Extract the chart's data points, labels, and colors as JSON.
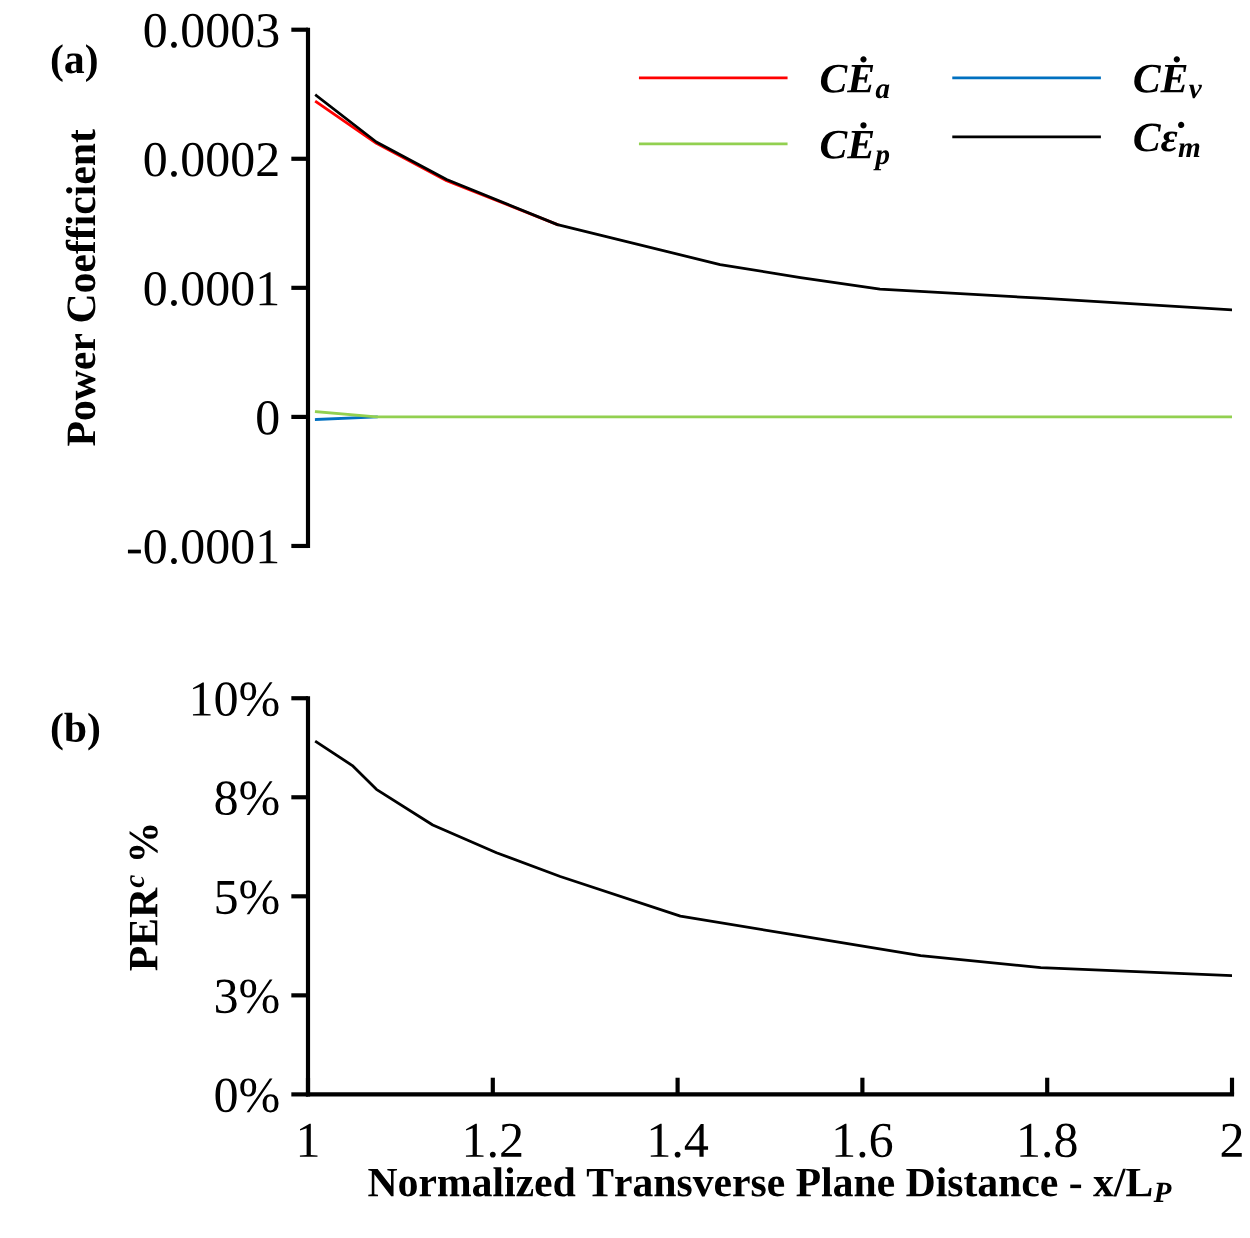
{
  "chart_data": [
    {
      "type": "line",
      "ylabel": "Power Coefficient",
      "annotations": [
        "(a)"
      ],
      "x": [
        1.009,
        1.074,
        1.15,
        1.27,
        1.446,
        1.533,
        1.619,
        1.793,
        2.0
      ],
      "xlim": [
        1,
        2
      ],
      "tick_labels": "y",
      "ylim": [
        -0.0001,
        0.0003
      ],
      "yticks": [
        {
          "value": -0.0001,
          "label": "-0.0001"
        },
        {
          "value": 0,
          "label": "0"
        },
        {
          "value": 0.0001,
          "label": "0.0001"
        },
        {
          "value": 0.0002,
          "label": "0.0002"
        },
        {
          "value": 0.0003,
          "label": "0.0003"
        }
      ],
      "grid": false,
      "legend": "top right",
      "series": [
        {
          "name": "CĖ$_{a}$",
          "color": "#ff0000",
          "values": [
            0.000244,
            0.000212,
            0.000183,
            0.000149,
            null,
            null,
            null,
            null,
            null
          ]
        },
        {
          "name": "CĖ$_{v}$",
          "color": "#0070c0",
          "values": [
            -2e-06,
            0,
            null,
            null,
            null,
            null,
            null,
            null,
            null
          ]
        },
        {
          "name": "CĖ$_{p}$",
          "color": "#92d050",
          "values": [
            4e-06,
            0,
            0,
            0,
            0,
            0,
            0,
            0,
            0
          ]
        },
        {
          "name": "Cε̇$_{m}$",
          "color": "#000000",
          "values": [
            0.000249,
            0.000213,
            0.000184,
            0.000149,
            0.000118,
            0.000108,
            9.9e-05,
            9.2e-05,
            8.3e-05
          ]
        }
      ]
    },
    {
      "type": "line",
      "ylabel": "PER$^{c}$ %",
      "xlabel": "Normalized Transverse Plane Distance - x/L$_{P}$",
      "annotations": [
        "(b)"
      ],
      "xlim": [
        1,
        2
      ],
      "xticks": [
        1,
        1.2,
        1.4,
        1.6,
        1.8,
        2
      ],
      "ylim": [
        0,
        10
      ],
      "yticks": [
        {
          "value": 0,
          "label": "0%"
        },
        {
          "value": 2.5,
          "label": "3%"
        },
        {
          "value": 5,
          "label": "5%"
        },
        {
          "value": 7.5,
          "label": "8%"
        },
        {
          "value": 10,
          "label": "10%"
        }
      ],
      "grid": false,
      "series": [
        {
          "color": "#000000",
          "x": [
            1.009,
            1.048,
            1.074,
            1.135,
            1.204,
            1.273,
            1.403,
            1.533,
            1.663,
            1.793,
            2.0
          ],
          "values": [
            8.9,
            8.3,
            7.7,
            6.8,
            6.1,
            5.5,
            4.5,
            4.0,
            3.5,
            3.2,
            3.0
          ]
        }
      ]
    }
  ]
}
